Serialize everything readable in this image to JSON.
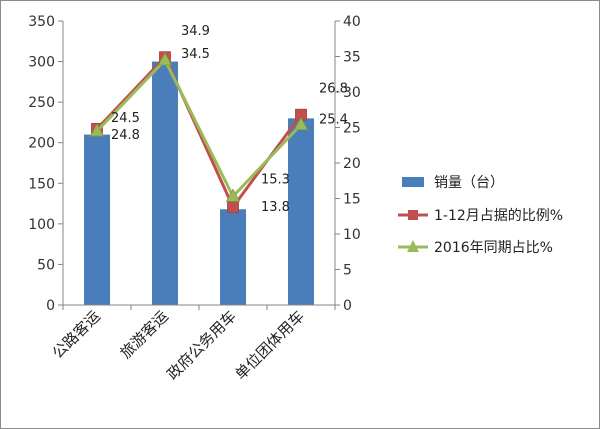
{
  "chart_data": {
    "type": "bar",
    "categories": [
      "公路客运",
      "旅游客运",
      "政府公务用车",
      "单位团体用车"
    ],
    "series": [
      {
        "name": "销量（台）",
        "type": "bar",
        "axis": "left",
        "color": "#4a7ebb",
        "values": [
          210,
          300,
          118,
          230
        ]
      },
      {
        "name": "1-12月占据的比例%",
        "type": "line",
        "axis": "right",
        "color": "#c0504d",
        "marker": "square",
        "values": [
          24.8,
          34.9,
          13.8,
          26.8
        ]
      },
      {
        "name": "2016年同期占比%",
        "type": "line",
        "axis": "right",
        "color": "#9bbb59",
        "marker": "triangle",
        "values": [
          24.5,
          34.5,
          15.3,
          25.4
        ]
      }
    ],
    "data_labels": [
      {
        "series": 1,
        "index": 0,
        "text": "24.8"
      },
      {
        "series": 2,
        "index": 0,
        "text": "24.5"
      },
      {
        "series": 1,
        "index": 1,
        "text": "34.9"
      },
      {
        "series": 2,
        "index": 1,
        "text": "34.5"
      },
      {
        "series": 2,
        "index": 2,
        "text": "15.3"
      },
      {
        "series": 1,
        "index": 2,
        "text": "13.8"
      },
      {
        "series": 1,
        "index": 3,
        "text": "26.8"
      },
      {
        "series": 2,
        "index": 3,
        "text": "25.4"
      }
    ],
    "ylim_left": [
      0,
      350
    ],
    "yticks_left": [
      0,
      50,
      100,
      150,
      200,
      250,
      300,
      350
    ],
    "ylim_right": [
      0,
      40
    ],
    "yticks_right": [
      0,
      5,
      10,
      15,
      20,
      25,
      30,
      35,
      40
    ],
    "grid": false,
    "legend_position": "right"
  }
}
